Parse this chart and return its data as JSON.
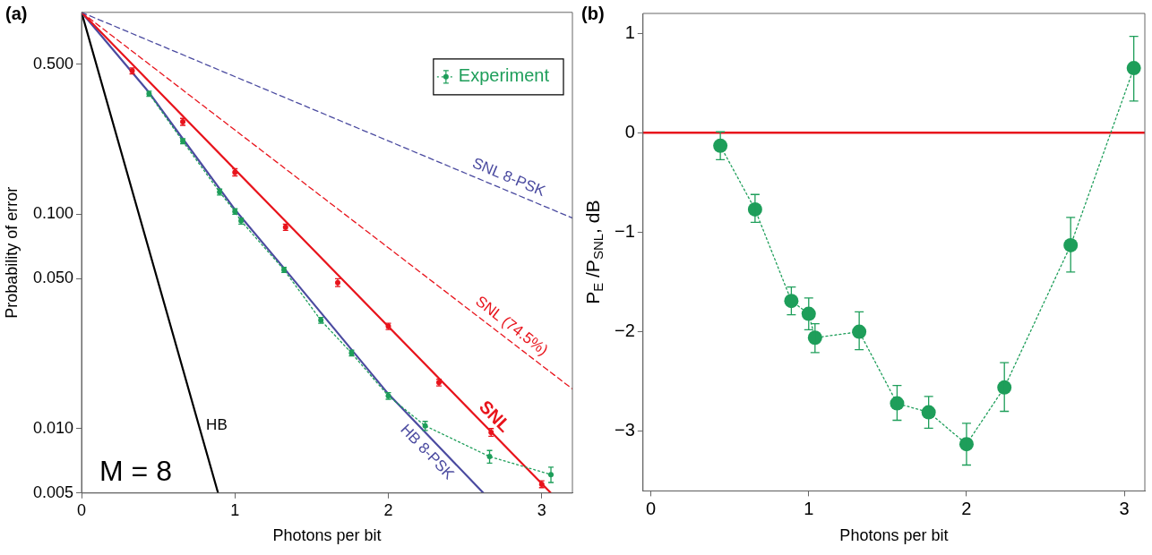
{
  "chart_data": [
    {
      "type": "line",
      "title": "(a)",
      "xlabel": "Photons per bit",
      "ylabel": "Probability of error",
      "annotations": [
        "M = 8"
      ],
      "log": "y",
      "legend": "top right",
      "grid": false,
      "xlim": [
        0,
        3.2
      ],
      "xticks": [
        0,
        1,
        2,
        3
      ],
      "ylim": [
        0.005,
        0.875
      ],
      "yticks": [
        {
          "value": 0.005,
          "label": "0.005"
        },
        {
          "value": 0.01,
          "label": "0.010"
        },
        {
          "value": 0.05,
          "label": "0.050"
        },
        {
          "value": 0.1,
          "label": "0.100"
        },
        {
          "value": 0.5,
          "label": "0.500"
        }
      ],
      "series": [
        {
          "name": "SNL 8-PSK",
          "type": "line",
          "marker": "none",
          "line_style": "dashed",
          "color": "#4b4ba0",
          "x": [
            0,
            3.2
          ],
          "values": [
            0.875,
            0.096
          ]
        },
        {
          "name": "SNL (74.5%)",
          "type": "line",
          "marker": "none",
          "line_style": "dashed",
          "color": "#e8141c",
          "x": [
            0,
            3.2
          ],
          "values": [
            0.875,
            0.0153
          ]
        },
        {
          "name": "SNL",
          "type": "line",
          "marker": "none",
          "line_style": "solid",
          "color": "#e8141c",
          "x": [
            0,
            3.06
          ],
          "values": [
            0.875,
            0.005
          ]
        },
        {
          "name": "HB 8-PSK",
          "type": "line",
          "marker": "none",
          "line_style": "solid",
          "color": "#4b4ba0",
          "x": [
            0,
            0.44,
            0.66,
            1.0,
            1.32,
            2.0,
            2.62
          ],
          "values": [
            0.875,
            0.37,
            0.225,
            0.105,
            0.056,
            0.0145,
            0.005
          ]
        },
        {
          "name": "HB",
          "type": "line",
          "marker": "none",
          "line_style": "solid",
          "color": "#000000",
          "x": [
            0,
            0.89
          ],
          "values": [
            0.875,
            0.005
          ]
        },
        {
          "type": "scatter",
          "marker": "circle",
          "color": "#e8141c",
          "x": [
            0.33,
            0.66,
            1.0,
            1.33,
            1.67,
            2.0,
            2.33,
            2.67,
            3.0
          ],
          "values": [
            0.467,
            0.27,
            0.157,
            0.087,
            0.048,
            0.03,
            0.0164,
            0.0096,
            0.0055
          ],
          "errors": [
            0.015,
            0.01,
            0.006,
            0.003,
            0.002,
            0.001,
            0.0006,
            0.0004,
            0.0002
          ]
        },
        {
          "name": "Experiment",
          "type": "line",
          "marker": "circle",
          "line_style": "dotted",
          "color": "#1e9e5a",
          "x": [
            0.44,
            0.66,
            0.9,
            1.0,
            1.04,
            1.32,
            1.56,
            1.76,
            2.0,
            2.24,
            2.66,
            3.06
          ],
          "values": [
            0.365,
            0.219,
            0.127,
            0.103,
            0.093,
            0.055,
            0.032,
            0.0225,
            0.0142,
            0.0103,
            0.0074,
            0.0061
          ],
          "errors": [
            0.01,
            0.006,
            0.004,
            0.003,
            0.003,
            0.0015,
            0.001,
            0.0007,
            0.0005,
            0.0005,
            0.0005,
            0.0005
          ]
        }
      ]
    },
    {
      "type": "line",
      "title": "(b)",
      "xlabel": "Photons per bit",
      "ylabel": "P$_{E}$ /P$_{SNL}$, dB",
      "grid": false,
      "xlim": [
        -0.05,
        3.13
      ],
      "xticks": [
        0,
        1,
        2,
        3
      ],
      "ylim": [
        -3.6,
        1.2
      ],
      "yticks": [
        {
          "value": -3,
          "label": "−3"
        },
        {
          "value": -2,
          "label": "−2"
        },
        {
          "value": -1,
          "label": "−1"
        },
        0,
        1
      ],
      "ref_lines": [
        {
          "axis": "y",
          "value": 0,
          "color": "#e8141c"
        }
      ],
      "series": [
        {
          "type": "line",
          "marker": "circle",
          "line_style": "dotted",
          "color": "#1e9e5a",
          "x": [
            0.44,
            0.66,
            0.89,
            1.0,
            1.04,
            1.32,
            1.56,
            1.76,
            2.0,
            2.24,
            2.66,
            3.06
          ],
          "values": [
            -0.13,
            -0.77,
            -1.69,
            -1.82,
            -2.06,
            -2.0,
            -2.72,
            -2.81,
            -3.13,
            -2.56,
            -1.13,
            0.65
          ],
          "errors": [
            [
              -0.27,
              0.01
            ],
            [
              -0.9,
              -0.62
            ],
            [
              -1.83,
              -1.55
            ],
            [
              -1.98,
              -1.66
            ],
            [
              -2.21,
              -1.92
            ],
            [
              -2.18,
              -1.8
            ],
            [
              -2.89,
              -2.54
            ],
            [
              -2.97,
              -2.65
            ],
            [
              -3.34,
              -2.92
            ],
            [
              -2.8,
              -2.31
            ],
            [
              -1.4,
              -0.85
            ],
            [
              0.32,
              0.97
            ]
          ]
        }
      ]
    }
  ]
}
